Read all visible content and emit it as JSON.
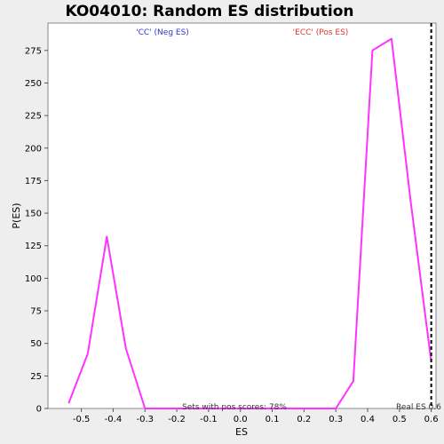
{
  "chart_data": {
    "type": "line",
    "title": "KO04010: Random ES distribution",
    "xlabel": "ES",
    "ylabel": "P(ES)",
    "xlim": [
      -0.605,
      0.615
    ],
    "ylim": [
      0,
      296
    ],
    "x_ticks": [
      -0.5,
      -0.4,
      -0.3,
      -0.2,
      -0.1,
      0.0,
      0.1,
      0.2,
      0.3,
      0.4,
      0.5,
      0.6
    ],
    "x_tick_labels": [
      "-0.5",
      "-0.4",
      "-0.3",
      "-0.2",
      "-0.1",
      "0.0",
      "0.1",
      "0.2",
      "0.3",
      "0.4",
      "0.5",
      "0.6"
    ],
    "y_ticks": [
      0,
      25,
      50,
      75,
      100,
      125,
      150,
      175,
      200,
      225,
      250,
      275
    ],
    "y_tick_labels": [
      "0",
      "25",
      "50",
      "75",
      "100",
      "125",
      "150",
      "175",
      "200",
      "225",
      "250",
      "275"
    ],
    "series": [
      {
        "color": "#ff33ff",
        "x": [
          -0.54,
          -0.48,
          -0.42,
          -0.36,
          -0.3,
          -0.24,
          -0.18,
          -0.12,
          -0.06,
          0.0,
          0.06,
          0.12,
          0.18,
          0.24,
          0.3,
          0.355,
          0.415,
          0.475,
          0.535,
          0.6
        ],
        "y": [
          4,
          42,
          132,
          46,
          0,
          0,
          0,
          0,
          0,
          0,
          0,
          0,
          0,
          0,
          0,
          21,
          275,
          284,
          160,
          36
        ]
      }
    ],
    "reference_line": {
      "x": 0.6,
      "style": "dashed",
      "color": "#000000"
    },
    "annotations": {
      "neg_label": "'CC' (Neg ES)",
      "neg_color": "#3333cc",
      "pos_label": "'ECC' (Pos ES)",
      "pos_color": "#dd3333",
      "sets_text": "Sets with pos scores: 78%",
      "real_es_text": "Real ES 0.6"
    },
    "grid": false,
    "legend": "none"
  }
}
